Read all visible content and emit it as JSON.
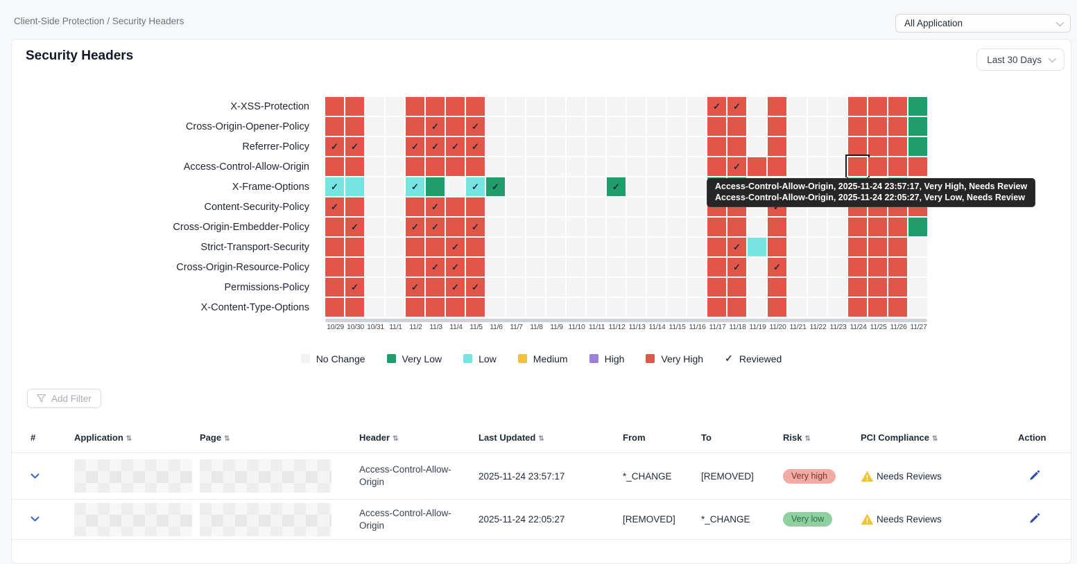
{
  "breadcrumb": "Client-Side Protection / Security Headers",
  "app_filter": {
    "value": "All Application"
  },
  "card": {
    "title": "Security Headers",
    "date_range": "Last 30 Days"
  },
  "heatmap": {
    "columns": [
      "10/29",
      "10/30",
      "10/31",
      "11/1",
      "11/2",
      "11/3",
      "11/4",
      "11/5",
      "11/6",
      "11/7",
      "11/8",
      "11/9",
      "11/10",
      "11/11",
      "11/12",
      "11/13",
      "11/14",
      "11/15",
      "11/16",
      "11/17",
      "11/18",
      "11/19",
      "11/20",
      "11/21",
      "11/22",
      "11/23",
      "11/24",
      "11/25",
      "11/26",
      "11/27"
    ],
    "colors": {
      "n": "#f4f4f5",
      "r": "#e2564a",
      "g": "#1f9d6b",
      "c": "#76e4e1"
    },
    "rows": [
      {
        "label": "X-XSS-Protection",
        "cells": [
          "r",
          "r",
          "n",
          "n",
          "r",
          "r",
          "r",
          "r",
          "n",
          "n",
          "n",
          "n",
          "n",
          "n",
          "n",
          "n",
          "n",
          "n",
          "n",
          "rc",
          "rc",
          "n",
          "r",
          "n",
          "n",
          "n",
          "r",
          "r",
          "r",
          "g"
        ]
      },
      {
        "label": "Cross-Origin-Opener-Policy",
        "cells": [
          "r",
          "r",
          "n",
          "n",
          "r",
          "rc",
          "r",
          "rc",
          "n",
          "n",
          "n",
          "n",
          "n",
          "n",
          "n",
          "n",
          "n",
          "n",
          "n",
          "r",
          "r",
          "n",
          "r",
          "n",
          "n",
          "n",
          "r",
          "r",
          "r",
          "g"
        ]
      },
      {
        "label": "Referrer-Policy",
        "cells": [
          "rc",
          "rc",
          "n",
          "n",
          "rc",
          "rc",
          "rc",
          "rc",
          "n",
          "n",
          "n",
          "n",
          "n",
          "n",
          "n",
          "n",
          "n",
          "n",
          "n",
          "r",
          "r",
          "n",
          "r",
          "n",
          "n",
          "n",
          "r",
          "r",
          "r",
          "g"
        ]
      },
      {
        "label": "Access-Control-Allow-Origin",
        "cells": [
          "r",
          "r",
          "n",
          "n",
          "r",
          "r",
          "r",
          "r",
          "n",
          "n",
          "n",
          "n",
          "n",
          "n",
          "n",
          "n",
          "n",
          "n",
          "n",
          "r",
          "rc",
          "r",
          "r",
          "n",
          "n",
          "n",
          "rsel",
          "r",
          "r",
          "r"
        ]
      },
      {
        "label": "X-Frame-Options",
        "cells": [
          "cc",
          "c",
          "n",
          "n",
          "cc",
          "g",
          "n",
          "cc",
          "gc",
          "n",
          "n",
          "n",
          "n",
          "n",
          "gc",
          "n",
          "n",
          "n",
          "n",
          "g",
          "g",
          "n",
          "n",
          "n",
          "n",
          "n",
          "c",
          "n",
          "c",
          "n"
        ]
      },
      {
        "label": "Content-Security-Policy",
        "cells": [
          "rc",
          "r",
          "n",
          "n",
          "r",
          "rc",
          "r",
          "r",
          "n",
          "n",
          "n",
          "n",
          "n",
          "n",
          "n",
          "n",
          "n",
          "n",
          "n",
          "r",
          "r",
          "n",
          "rc",
          "n",
          "n",
          "n",
          "r",
          "r",
          "r",
          "r"
        ]
      },
      {
        "label": "Cross-Origin-Embedder-Policy",
        "cells": [
          "r",
          "rc",
          "n",
          "n",
          "rc",
          "rc",
          "r",
          "rc",
          "n",
          "n",
          "n",
          "n",
          "n",
          "n",
          "n",
          "n",
          "n",
          "n",
          "n",
          "r",
          "r",
          "n",
          "r",
          "n",
          "n",
          "n",
          "r",
          "r",
          "r",
          "g"
        ]
      },
      {
        "label": "Strict-Transport-Security",
        "cells": [
          "r",
          "r",
          "n",
          "n",
          "r",
          "r",
          "rc",
          "r",
          "n",
          "n",
          "n",
          "n",
          "n",
          "n",
          "n",
          "n",
          "n",
          "n",
          "n",
          "r",
          "rc",
          "c",
          "r",
          "n",
          "n",
          "n",
          "r",
          "r",
          "r",
          "n"
        ]
      },
      {
        "label": "Cross-Origin-Resource-Policy",
        "cells": [
          "r",
          "r",
          "n",
          "n",
          "r",
          "rc",
          "rc",
          "r",
          "n",
          "n",
          "n",
          "n",
          "n",
          "n",
          "n",
          "n",
          "n",
          "n",
          "n",
          "r",
          "rc",
          "n",
          "rc",
          "n",
          "n",
          "n",
          "r",
          "r",
          "r",
          "n"
        ]
      },
      {
        "label": "Permissions-Policy",
        "cells": [
          "r",
          "rc",
          "n",
          "n",
          "rc",
          "r",
          "rc",
          "rc",
          "n",
          "n",
          "n",
          "n",
          "n",
          "n",
          "n",
          "n",
          "n",
          "n",
          "n",
          "r",
          "r",
          "n",
          "r",
          "n",
          "n",
          "n",
          "r",
          "r",
          "r",
          "n"
        ]
      },
      {
        "label": "X-Content-Type-Options",
        "cells": [
          "r",
          "r",
          "n",
          "n",
          "r",
          "r",
          "r",
          "r",
          "n",
          "n",
          "n",
          "n",
          "n",
          "n",
          "n",
          "n",
          "n",
          "n",
          "n",
          "r",
          "r",
          "n",
          "r",
          "n",
          "n",
          "n",
          "r",
          "r",
          "r",
          "n"
        ]
      }
    ],
    "legend": [
      {
        "label": "No Change",
        "color": "#f2f2f3"
      },
      {
        "label": "Very Low",
        "color": "#1f9d6b"
      },
      {
        "label": "Low",
        "color": "#76e4e1"
      },
      {
        "label": "Medium",
        "color": "#f2c233"
      },
      {
        "label": "High",
        "color": "#9d80d8"
      },
      {
        "label": "Very High",
        "color": "#e2564a"
      },
      {
        "label": "Reviewed",
        "check": true
      }
    ],
    "tooltip_lines": [
      "Access-Control-Allow-Origin, 2025-11-24 23:57:17, Very High, Needs Review",
      "Access-Control-Allow-Origin, 2025-11-24 22:05:27, Very Low, Needs Review"
    ]
  },
  "filters": {
    "add_filter_label": "Add Filter"
  },
  "table": {
    "headers": {
      "num": "#",
      "application": "Application",
      "page": "Page",
      "header": "Header",
      "last_updated": "Last Updated",
      "from": "From",
      "to": "To",
      "risk": "Risk",
      "pci": "PCI Compliance",
      "action": "Action"
    },
    "rows": [
      {
        "header": "Access-Control-Allow-Origin",
        "last_updated": "2025-11-24 23:57:17",
        "from": "*_CHANGE",
        "to": "[REMOVED]",
        "risk": "Very high",
        "risk_class": "very-high",
        "pci": "Needs Reviews"
      },
      {
        "header": "Access-Control-Allow-Origin",
        "last_updated": "2025-11-24 22:05:27",
        "from": "[REMOVED]",
        "to": "*_CHANGE",
        "risk": "Very low",
        "risk_class": "very-low",
        "pci": "Needs Reviews"
      }
    ]
  }
}
